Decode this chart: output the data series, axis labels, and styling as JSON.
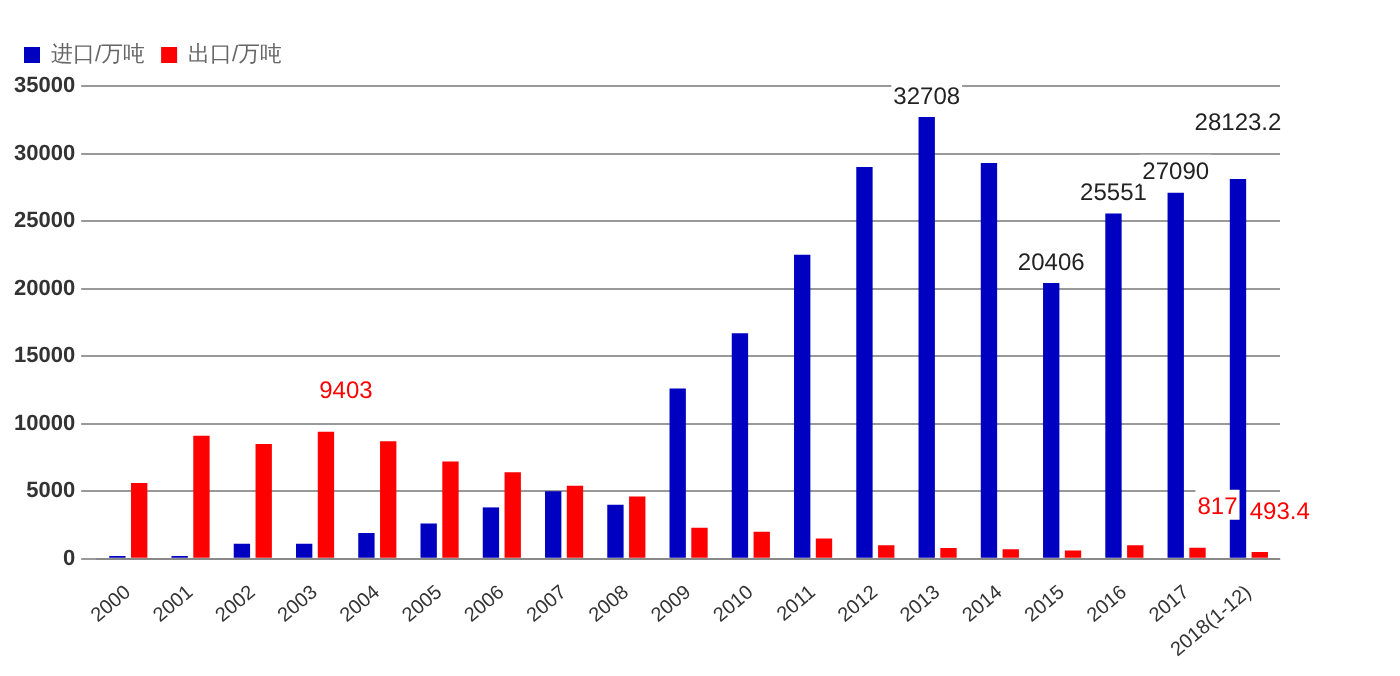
{
  "chart_data": {
    "type": "bar",
    "categories": [
      "2000",
      "2001",
      "2002",
      "2003",
      "2004",
      "2005",
      "2006",
      "2007",
      "2008",
      "2009",
      "2010",
      "2011",
      "2012",
      "2013",
      "2014",
      "2015",
      "2016",
      "2017",
      "2018(1-12)"
    ],
    "series": [
      {
        "name": "进口/万吨",
        "color": "#0000c0",
        "values": [
          200,
          200,
          1100,
          1100,
          1900,
          2600,
          3800,
          5000,
          4000,
          12600,
          16700,
          22500,
          29000,
          32708,
          29300,
          20406,
          25551,
          27090,
          28123.2
        ],
        "value_labels": [
          null,
          null,
          null,
          null,
          null,
          null,
          null,
          null,
          null,
          null,
          null,
          null,
          null,
          "32708",
          null,
          "20406",
          "25551",
          "27090",
          "28123.2"
        ]
      },
      {
        "name": "出口/万吨",
        "color": "#ff0000",
        "values": [
          5600,
          9100,
          8500,
          9403,
          8700,
          7200,
          6400,
          5400,
          4600,
          2300,
          2000,
          1500,
          1000,
          800,
          700,
          600,
          1000,
          817,
          493.4
        ],
        "value_labels": [
          null,
          null,
          null,
          "9403",
          null,
          null,
          null,
          null,
          null,
          null,
          null,
          null,
          null,
          null,
          null,
          null,
          null,
          "817",
          "493.4"
        ]
      }
    ],
    "ylim": [
      0,
      35000
    ],
    "yticks": [
      0,
      5000,
      10000,
      15000,
      20000,
      25000,
      30000,
      35000
    ],
    "grid": "y",
    "legend": "top left"
  }
}
